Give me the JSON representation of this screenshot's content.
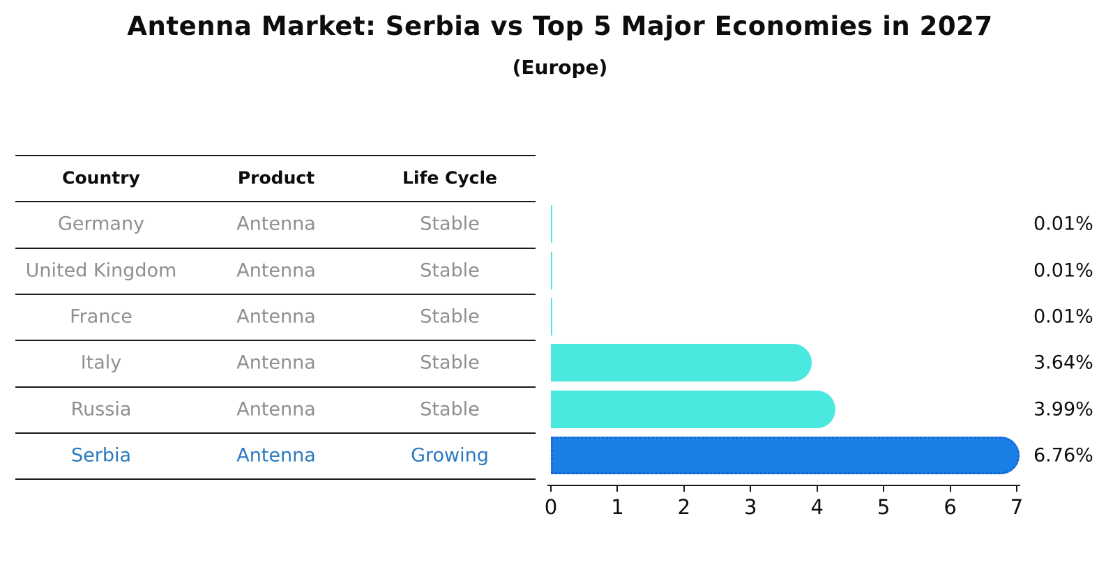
{
  "header": {
    "title": "Antenna Market: Serbia vs Top 5 Major Economies in 2027",
    "subtitle": "(Europe)"
  },
  "table": {
    "columns": [
      "Country",
      "Product",
      "Life Cycle"
    ],
    "rows": [
      {
        "country": "Germany",
        "product": "Antenna",
        "life_cycle": "Stable",
        "highlight": false
      },
      {
        "country": "United Kingdom",
        "product": "Antenna",
        "life_cycle": "Stable",
        "highlight": false
      },
      {
        "country": "France",
        "product": "Antenna",
        "life_cycle": "Stable",
        "highlight": false
      },
      {
        "country": "Italy",
        "product": "Antenna",
        "life_cycle": "Stable",
        "highlight": false
      },
      {
        "country": "Russia",
        "product": "Antenna",
        "life_cycle": "Stable",
        "highlight": false
      },
      {
        "country": "Serbia",
        "product": "Antenna",
        "life_cycle": "Growing",
        "highlight": true
      }
    ]
  },
  "chart_data": {
    "type": "bar",
    "orientation": "horizontal",
    "title": "Antenna Market: Serbia vs Top 5 Major Economies in 2027",
    "subtitle": "(Europe)",
    "categories": [
      "Germany",
      "United Kingdom",
      "France",
      "Italy",
      "Russia",
      "Serbia"
    ],
    "values": [
      0.01,
      0.01,
      0.01,
      3.64,
      3.99,
      6.76
    ],
    "value_labels": [
      "0.01%",
      "0.01%",
      "0.01%",
      "3.64%",
      "3.99%",
      "6.76%"
    ],
    "highlight_index": 5,
    "xlim": [
      0,
      7
    ],
    "x_ticks": [
      "0",
      "1",
      "2",
      "3",
      "4",
      "5",
      "6",
      "7"
    ],
    "xlabel": "",
    "ylabel": "",
    "grid": false,
    "legend": "none"
  },
  "colors": {
    "bar_default": "#4be8e0",
    "bar_highlight": "#1a80e8",
    "bar_highlight_border": "#1565d0",
    "text_muted": "#8f8f8f",
    "text_highlight": "#2b7ac0",
    "text_dark": "#0d0d0d"
  }
}
